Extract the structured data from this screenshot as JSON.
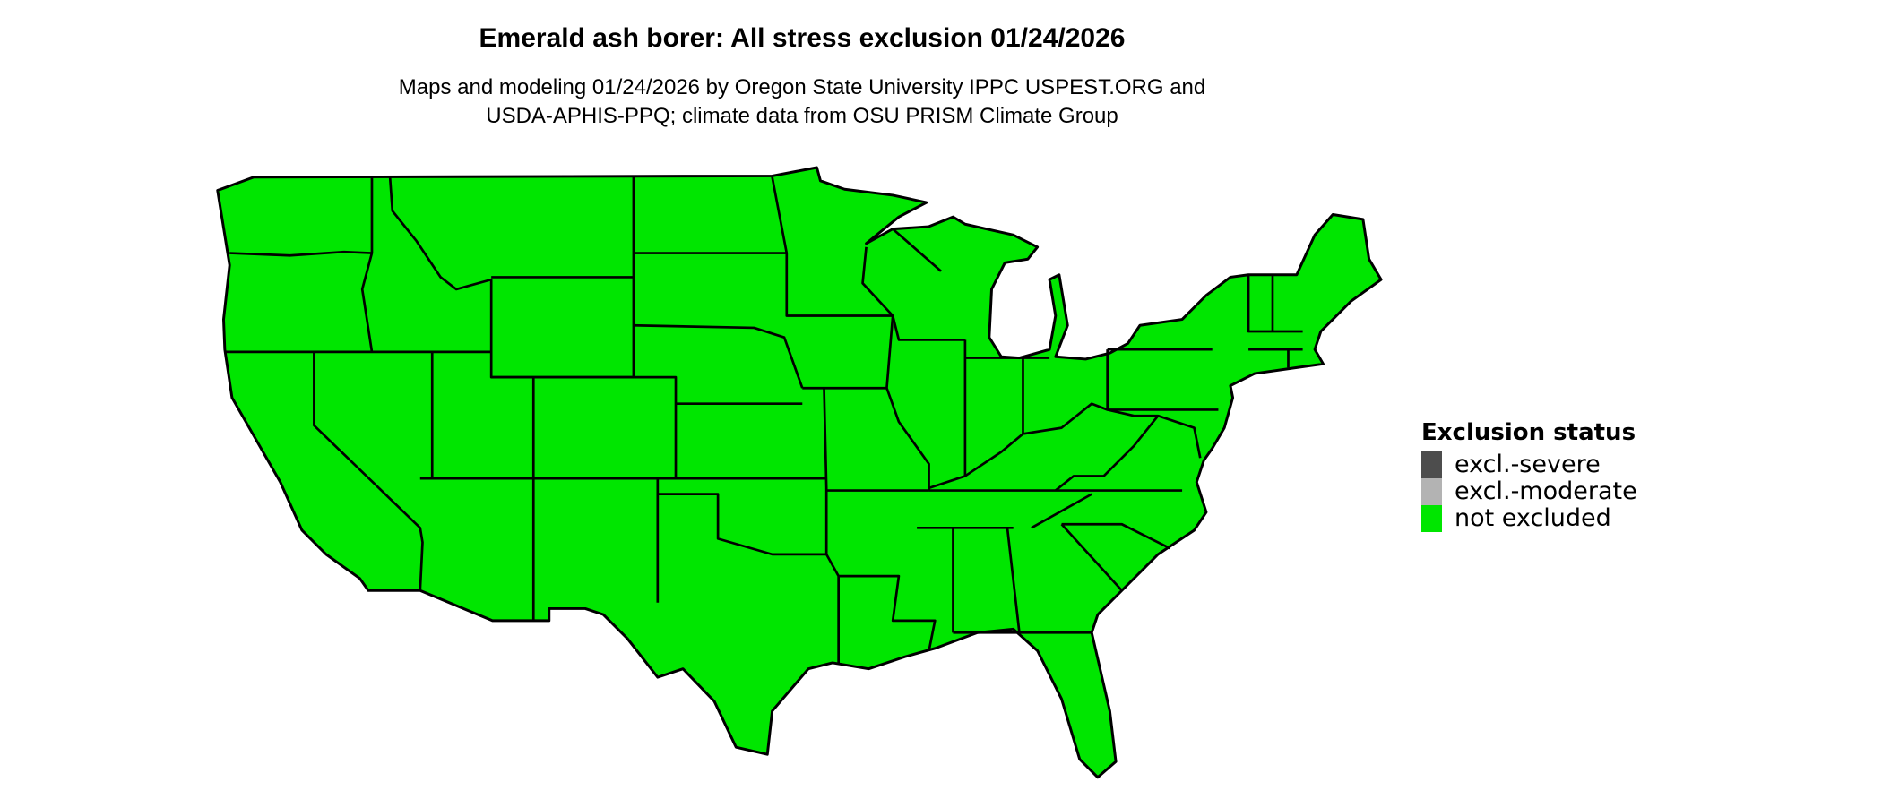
{
  "header": {
    "title": "Emerald ash borer: All stress exclusion 01/24/2026",
    "subtitle_line1": "Maps and modeling 01/24/2026 by Oregon State University IPPC USPEST.ORG and",
    "subtitle_line2": "USDA-APHIS-PPQ; climate data from OSU PRISM Climate Group"
  },
  "map": {
    "region": "Contiguous United States",
    "fill_status": "not excluded",
    "fill_color": "#00e600",
    "border_color": "#000000"
  },
  "legend": {
    "title": "Exclusion status",
    "items": [
      {
        "label": "excl.-severe",
        "color": "#4d4d4d"
      },
      {
        "label": "excl.-moderate",
        "color": "#b3b3b3"
      },
      {
        "label": "not excluded",
        "color": "#00e600"
      }
    ]
  }
}
